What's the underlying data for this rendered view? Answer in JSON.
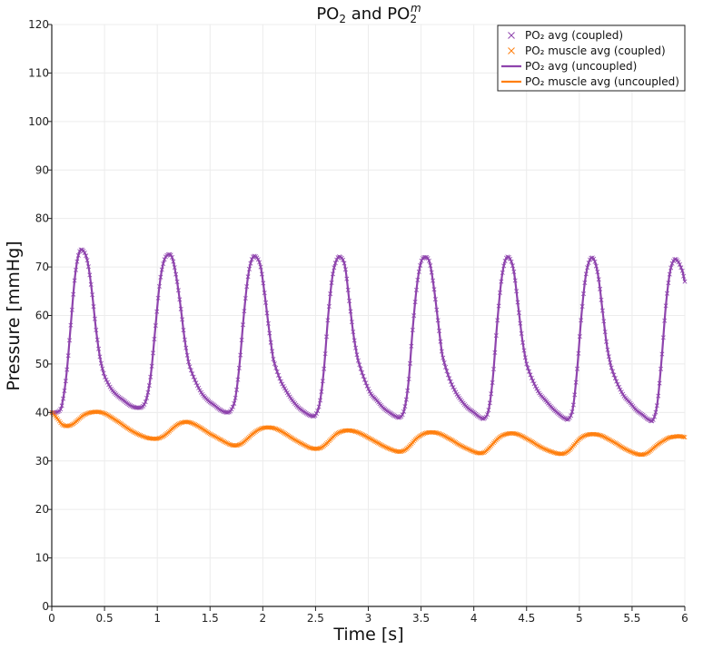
{
  "chart_data": {
    "type": "line",
    "title": "PO₂ and PO₂ᵐ",
    "title_parts": {
      "base_a": "PO",
      "sub_a": "2",
      "joiner": " and ",
      "base_b": "PO",
      "sub_b": "2",
      "sup_b": "m"
    },
    "xlabel": "Time [s]",
    "ylabel": "Pressure [mmHg]",
    "xlim": [
      0,
      6
    ],
    "ylim": [
      0,
      120
    ],
    "xticks": [
      0,
      0.5,
      1,
      1.5,
      2,
      2.5,
      3,
      3.5,
      4,
      4.5,
      5,
      5.5,
      6
    ],
    "xtick_labels": [
      "0",
      "0.5",
      "1",
      "1.5",
      "2",
      "2.5",
      "3",
      "3.5",
      "4",
      "4.5",
      "5",
      "5.5",
      "6"
    ],
    "yticks": [
      0,
      10,
      20,
      30,
      40,
      50,
      60,
      70,
      80,
      90,
      100,
      110,
      120
    ],
    "ytick_labels": [
      "0",
      "10",
      "20",
      "30",
      "40",
      "50",
      "60",
      "70",
      "80",
      "90",
      "100",
      "110",
      "120"
    ],
    "grid": true,
    "legend_position": "top-right",
    "colors": {
      "po2": "#8e44ad",
      "po2_muscle": "#ff7f0e"
    },
    "series": [
      {
        "name": "PO2 avg (coupled)",
        "legend_label": "PO₂ avg (coupled)",
        "style": "markers",
        "color": "#8e44ad",
        "x": [
          0,
          0.04,
          0.08,
          0.1,
          0.14,
          0.18,
          0.22,
          0.26,
          0.3,
          0.34,
          0.38,
          0.42,
          0.46,
          0.5,
          0.56,
          0.62,
          0.68,
          0.74,
          0.8,
          0.86,
          0.9,
          0.94,
          0.98,
          1.02,
          1.06,
          1.1,
          1.14,
          1.18,
          1.22,
          1.26,
          1.3,
          1.36,
          1.42,
          1.48,
          1.54,
          1.6,
          1.66,
          1.7,
          1.74,
          1.78,
          1.82,
          1.86,
          1.9,
          1.94,
          1.98,
          2.02,
          2.06,
          2.1,
          2.16,
          2.22,
          2.28,
          2.34,
          2.4,
          2.46,
          2.5,
          2.54,
          2.58,
          2.62,
          2.66,
          2.7,
          2.74,
          2.78,
          2.82,
          2.86,
          2.9,
          2.96,
          3.02,
          3.08,
          3.14,
          3.2,
          3.26,
          3.3,
          3.34,
          3.38,
          3.42,
          3.46,
          3.5,
          3.54,
          3.58,
          3.62,
          3.66,
          3.7,
          3.76,
          3.82,
          3.88,
          3.94,
          4.0,
          4.06,
          4.1,
          4.14,
          4.18,
          4.22,
          4.26,
          4.3,
          4.34,
          4.38,
          4.42,
          4.46,
          4.5,
          4.56,
          4.62,
          4.68,
          4.74,
          4.8,
          4.86,
          4.9,
          4.94,
          4.98,
          5.02,
          5.06,
          5.1,
          5.14,
          5.18,
          5.22,
          5.26,
          5.3,
          5.36,
          5.42,
          5.48,
          5.54,
          5.6,
          5.66,
          5.7,
          5.74,
          5.78,
          5.82,
          5.86,
          5.9,
          5.94,
          5.98,
          6.0
        ],
        "y": [
          40,
          40,
          40.5,
          42,
          48,
          58,
          68,
          73,
          73.3,
          71,
          65,
          57,
          51,
          47.5,
          45,
          43.5,
          42.5,
          41.5,
          41,
          41.2,
          43,
          48,
          57,
          66,
          71,
          72.5,
          72,
          68,
          62,
          55,
          50,
          46.5,
          44,
          42.5,
          41.5,
          40.5,
          40,
          40.5,
          43,
          50,
          60,
          68,
          71.8,
          72,
          70,
          64,
          57,
          51,
          47,
          44.5,
          42.5,
          41,
          40,
          39.3,
          39.5,
          42,
          49,
          60,
          68,
          71.5,
          72,
          70,
          63,
          56,
          51,
          47,
          44,
          42.5,
          41,
          40,
          39.2,
          39,
          40.5,
          46,
          57,
          66,
          71,
          72,
          71,
          66,
          59,
          52,
          47.5,
          44.5,
          42.5,
          41,
          40,
          39,
          38.8,
          40.5,
          47,
          58,
          67,
          71.5,
          71.8,
          69,
          62,
          55,
          50,
          46.5,
          44,
          42.5,
          41,
          39.8,
          38.8,
          38.7,
          41,
          49,
          60,
          68,
          71.5,
          71.5,
          68,
          61,
          54,
          49.5,
          46,
          43.5,
          42,
          40.5,
          39.5,
          38.5,
          38.5,
          42,
          51,
          62,
          69,
          71.5,
          71,
          69,
          67
        ]
      },
      {
        "name": "PO2 muscle avg (coupled)",
        "legend_label": "PO₂ muscle avg (coupled)",
        "style": "markers",
        "color": "#ff7f0e",
        "x": [
          0,
          0.05,
          0.1,
          0.15,
          0.2,
          0.25,
          0.3,
          0.35,
          0.4,
          0.45,
          0.5,
          0.55,
          0.6,
          0.65,
          0.7,
          0.75,
          0.8,
          0.85,
          0.9,
          0.95,
          1.0,
          1.05,
          1.1,
          1.15,
          1.2,
          1.25,
          1.3,
          1.35,
          1.4,
          1.45,
          1.5,
          1.55,
          1.6,
          1.65,
          1.7,
          1.75,
          1.8,
          1.85,
          1.9,
          1.95,
          2.0,
          2.05,
          2.1,
          2.15,
          2.2,
          2.25,
          2.3,
          2.35,
          2.4,
          2.45,
          2.5,
          2.55,
          2.6,
          2.65,
          2.7,
          2.75,
          2.8,
          2.85,
          2.9,
          2.95,
          3.0,
          3.05,
          3.1,
          3.15,
          3.2,
          3.25,
          3.3,
          3.35,
          3.4,
          3.45,
          3.5,
          3.55,
          3.6,
          3.65,
          3.7,
          3.75,
          3.8,
          3.85,
          3.9,
          3.95,
          4.0,
          4.05,
          4.1,
          4.15,
          4.2,
          4.25,
          4.3,
          4.35,
          4.4,
          4.45,
          4.5,
          4.55,
          4.6,
          4.65,
          4.7,
          4.75,
          4.8,
          4.85,
          4.9,
          4.95,
          5.0,
          5.05,
          5.1,
          5.15,
          5.2,
          5.25,
          5.3,
          5.35,
          5.4,
          5.45,
          5.5,
          5.55,
          5.6,
          5.65,
          5.7,
          5.75,
          5.8,
          5.85,
          5.9,
          5.95,
          6.0
        ],
        "y": [
          40,
          38.8,
          37.5,
          37.2,
          37.6,
          38.5,
          39.4,
          39.9,
          40.1,
          40.1,
          39.8,
          39.2,
          38.5,
          37.8,
          37.0,
          36.3,
          35.7,
          35.2,
          34.8,
          34.6,
          34.6,
          35.0,
          35.8,
          36.8,
          37.6,
          38.0,
          38.0,
          37.6,
          37.0,
          36.3,
          35.6,
          35.0,
          34.4,
          33.8,
          33.3,
          33.2,
          33.6,
          34.5,
          35.5,
          36.3,
          36.8,
          36.9,
          36.8,
          36.4,
          35.8,
          35.1,
          34.4,
          33.8,
          33.2,
          32.7,
          32.5,
          32.7,
          33.5,
          34.6,
          35.6,
          36.1,
          36.3,
          36.2,
          35.9,
          35.4,
          34.8,
          34.2,
          33.6,
          33.0,
          32.5,
          32.1,
          31.9,
          32.3,
          33.3,
          34.5,
          35.3,
          35.8,
          35.9,
          35.8,
          35.4,
          34.8,
          34.2,
          33.5,
          32.9,
          32.4,
          31.9,
          31.6,
          31.8,
          32.8,
          34.0,
          35.0,
          35.5,
          35.7,
          35.6,
          35.2,
          34.6,
          34.0,
          33.3,
          32.7,
          32.2,
          31.8,
          31.5,
          31.5,
          32.1,
          33.3,
          34.5,
          35.2,
          35.5,
          35.5,
          35.3,
          34.8,
          34.2,
          33.6,
          32.9,
          32.3,
          31.8,
          31.4,
          31.3,
          31.7,
          32.6,
          33.5,
          34.2,
          34.8,
          35.0,
          35.1,
          34.9
        ]
      },
      {
        "name": "PO2 avg (uncoupled)",
        "legend_label": "PO₂ avg (uncoupled)",
        "style": "line",
        "color": "#8e44ad",
        "ref": 0
      },
      {
        "name": "PO2 muscle avg (uncoupled)",
        "legend_label": "PO₂ muscle avg (uncoupled)",
        "style": "line",
        "color": "#ff7f0e",
        "ref": 1
      }
    ]
  }
}
